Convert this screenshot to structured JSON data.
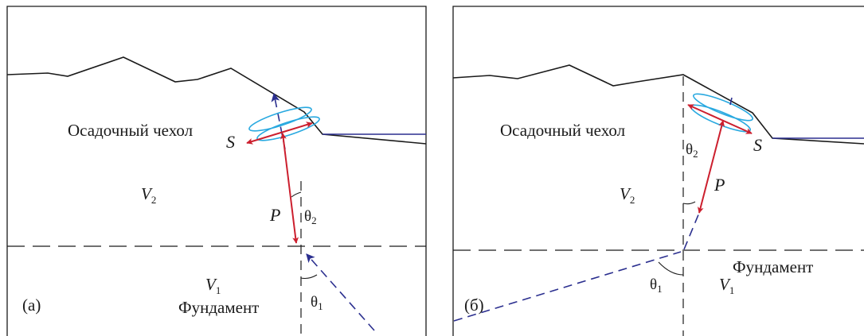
{
  "panel_a": {
    "caption": "(а)",
    "upper_layer": "Осадочный чехол",
    "lower_layer": "Фундамент",
    "velocity_upper": {
      "symbol": "V",
      "subscript": "2"
    },
    "velocity_lower": {
      "symbol": "V",
      "subscript": "1"
    },
    "wave_s": "S",
    "wave_p": "P",
    "angle_upper": {
      "symbol": "θ",
      "subscript": "2"
    },
    "angle_lower": {
      "symbol": "θ",
      "subscript": "1"
    }
  },
  "panel_b": {
    "caption": "(б)",
    "upper_layer": "Осадочный чехол",
    "lower_layer": "Фундамент",
    "velocity_upper": {
      "symbol": "V",
      "subscript": "2"
    },
    "velocity_lower": {
      "symbol": "V",
      "subscript": "1"
    },
    "wave_s": "S",
    "wave_p": "P",
    "angle_upper": {
      "symbol": "θ",
      "subscript": "2"
    },
    "angle_lower": {
      "symbol": "θ",
      "subscript": "1"
    }
  },
  "colors": {
    "outline": "#1a1a1a",
    "ray": "#2b2f8f",
    "polarization": "#cc1f2e",
    "ellipse": "#29a9e0"
  }
}
